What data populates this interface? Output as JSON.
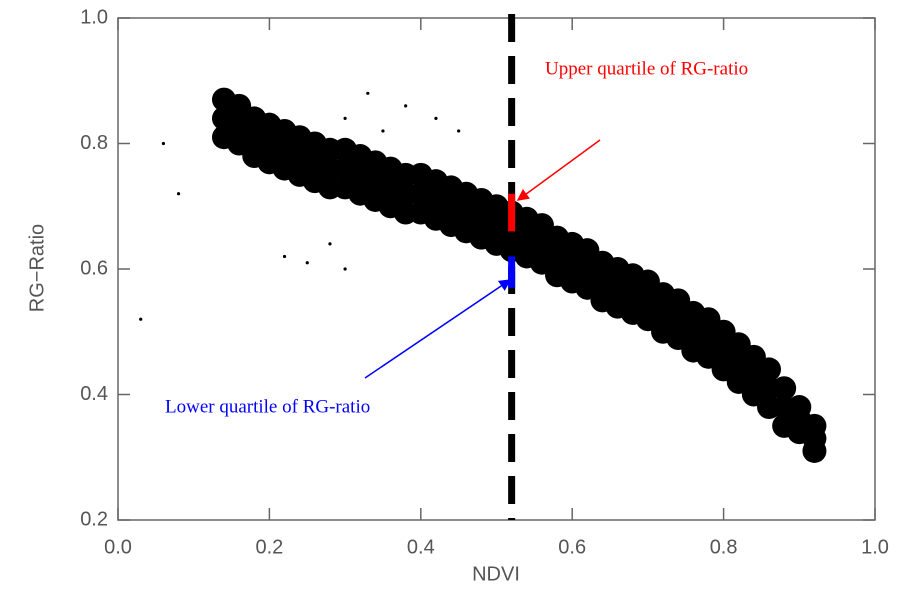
{
  "chart_data": {
    "type": "scatter",
    "xlabel": "NDVI",
    "ylabel": "RG−Ratio",
    "xlim": [
      0,
      1
    ],
    "ylim": [
      0.2,
      1
    ],
    "xticks": [
      {
        "value": 0,
        "label": "0.0"
      },
      0.2,
      0.4,
      0.6,
      0.8,
      {
        "value": 1,
        "label": "1.0"
      }
    ],
    "yticks": [
      0.2,
      0.4,
      0.6,
      0.8,
      {
        "value": 1,
        "label": "1.0"
      }
    ],
    "color": "#000000",
    "series": [
      {
        "x": [
          0.14,
          0.16,
          0.18,
          0.2,
          0.22,
          0.24,
          0.26,
          0.28,
          0.3,
          0.32,
          0.34,
          0.36,
          0.38,
          0.4,
          0.42,
          0.44,
          0.46,
          0.48,
          0.5,
          0.52,
          0.54,
          0.56,
          0.58,
          0.6,
          0.62,
          0.64,
          0.66,
          0.68,
          0.7,
          0.72,
          0.74,
          0.76,
          0.78,
          0.8,
          0.82,
          0.84,
          0.86,
          0.88,
          0.9,
          0.92,
          0.14,
          0.16,
          0.18,
          0.2,
          0.22,
          0.24,
          0.26,
          0.28,
          0.3,
          0.32,
          0.34,
          0.36,
          0.38,
          0.4,
          0.42,
          0.44,
          0.46,
          0.48,
          0.5,
          0.52,
          0.54,
          0.56,
          0.58,
          0.6,
          0.62,
          0.64,
          0.66,
          0.68,
          0.7,
          0.72,
          0.74,
          0.76,
          0.78,
          0.8,
          0.82,
          0.84,
          0.86,
          0.88,
          0.9,
          0.92,
          0.14,
          0.16,
          0.18,
          0.2,
          0.22,
          0.24,
          0.26,
          0.28,
          0.3,
          0.32,
          0.34,
          0.36,
          0.38,
          0.4,
          0.42,
          0.44,
          0.46,
          0.48,
          0.5,
          0.52,
          0.54,
          0.56,
          0.58,
          0.6,
          0.62,
          0.64,
          0.66,
          0.68,
          0.7,
          0.72,
          0.74,
          0.76,
          0.78,
          0.8,
          0.82,
          0.84,
          0.86,
          0.88,
          0.9,
          0.92
        ],
        "y": [
          0.84,
          0.83,
          0.81,
          0.8,
          0.79,
          0.78,
          0.77,
          0.76,
          0.76,
          0.75,
          0.74,
          0.73,
          0.72,
          0.72,
          0.71,
          0.7,
          0.69,
          0.68,
          0.67,
          0.66,
          0.65,
          0.64,
          0.62,
          0.61,
          0.6,
          0.58,
          0.57,
          0.56,
          0.55,
          0.53,
          0.52,
          0.5,
          0.49,
          0.47,
          0.45,
          0.43,
          0.41,
          0.38,
          0.36,
          0.33,
          0.87,
          0.86,
          0.84,
          0.83,
          0.82,
          0.81,
          0.8,
          0.79,
          0.79,
          0.78,
          0.77,
          0.76,
          0.75,
          0.75,
          0.74,
          0.73,
          0.72,
          0.71,
          0.7,
          0.69,
          0.68,
          0.67,
          0.65,
          0.64,
          0.63,
          0.61,
          0.6,
          0.59,
          0.58,
          0.56,
          0.55,
          0.53,
          0.52,
          0.5,
          0.48,
          0.46,
          0.44,
          0.41,
          0.38,
          0.35,
          0.81,
          0.8,
          0.78,
          0.77,
          0.76,
          0.75,
          0.74,
          0.73,
          0.73,
          0.72,
          0.71,
          0.7,
          0.69,
          0.69,
          0.68,
          0.67,
          0.66,
          0.65,
          0.64,
          0.63,
          0.62,
          0.61,
          0.59,
          0.58,
          0.57,
          0.55,
          0.54,
          0.53,
          0.52,
          0.5,
          0.49,
          0.47,
          0.46,
          0.44,
          0.42,
          0.4,
          0.38,
          0.35,
          0.34,
          0.31
        ]
      },
      {
        "x": [
          0.03,
          0.08,
          0.06,
          0.33,
          0.3,
          0.25,
          0.3,
          0.35,
          0.42,
          0.45,
          0.22,
          0.28,
          0.38
        ],
        "y": [
          0.52,
          0.72,
          0.8,
          0.88,
          0.84,
          0.61,
          0.6,
          0.82,
          0.84,
          0.82,
          0.62,
          0.64,
          0.86
        ]
      }
    ],
    "vline": {
      "x": 0.52,
      "color": "#000000"
    },
    "annotations": [
      {
        "text": "Upper quartile of RG-ratio",
        "color": "#ff0000",
        "x": 0.52,
        "y": [
          0.66,
          0.72
        ]
      },
      {
        "text": "Lower quartile of RG-ratio",
        "color": "#0000ff",
        "x": 0.52,
        "y": [
          0.57,
          0.62
        ]
      }
    ]
  }
}
